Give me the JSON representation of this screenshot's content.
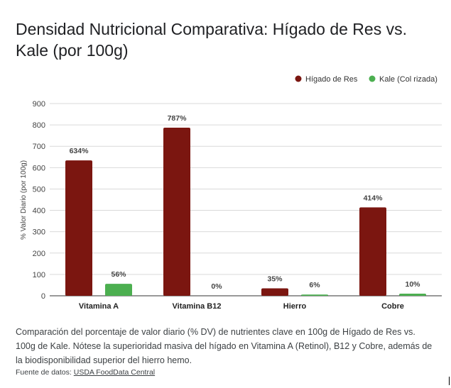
{
  "title": "Densidad Nutricional Comparativa: Hígado de Res vs. Kale (por 100g)",
  "caption": "Comparación del porcentaje de valor diario (% DV) de nutrientes clave en 100g de Hígado de Res vs. 100g de Kale. Nótese la superioridad masiva del hígado en Vitamina A (Retinol), B12 y Cobre, además de la biodisponibilidad superior del hierro hemo.",
  "source": {
    "prefix": "Fuente de datos: ",
    "link_text": "USDA FoodData Central"
  },
  "chart_data": {
    "type": "bar",
    "title": "Densidad Nutricional Comparativa: Hígado de Res vs. Kale (por 100g)",
    "categories": [
      "Vitamina A",
      "Vitamina B12",
      "Hierro",
      "Cobre"
    ],
    "series": [
      {
        "name": "Hígado de Res",
        "color": "#7b1610",
        "values": [
          634,
          787,
          35,
          414
        ],
        "labels": [
          "634%",
          "787%",
          "35%",
          "414%"
        ]
      },
      {
        "name": "Kale (Col rizada)",
        "color": "#4caf50",
        "values": [
          56,
          0,
          6,
          10
        ],
        "labels": [
          "56%",
          "0%",
          "6%",
          "10%"
        ]
      }
    ],
    "xlabel": "",
    "ylabel": "% Valor Diario (por 100g)",
    "ylim": [
      0,
      900
    ],
    "yticks": [
      0,
      100,
      200,
      300,
      400,
      500,
      600,
      700,
      800,
      900
    ],
    "grid": true,
    "legend_position": "top-right"
  }
}
